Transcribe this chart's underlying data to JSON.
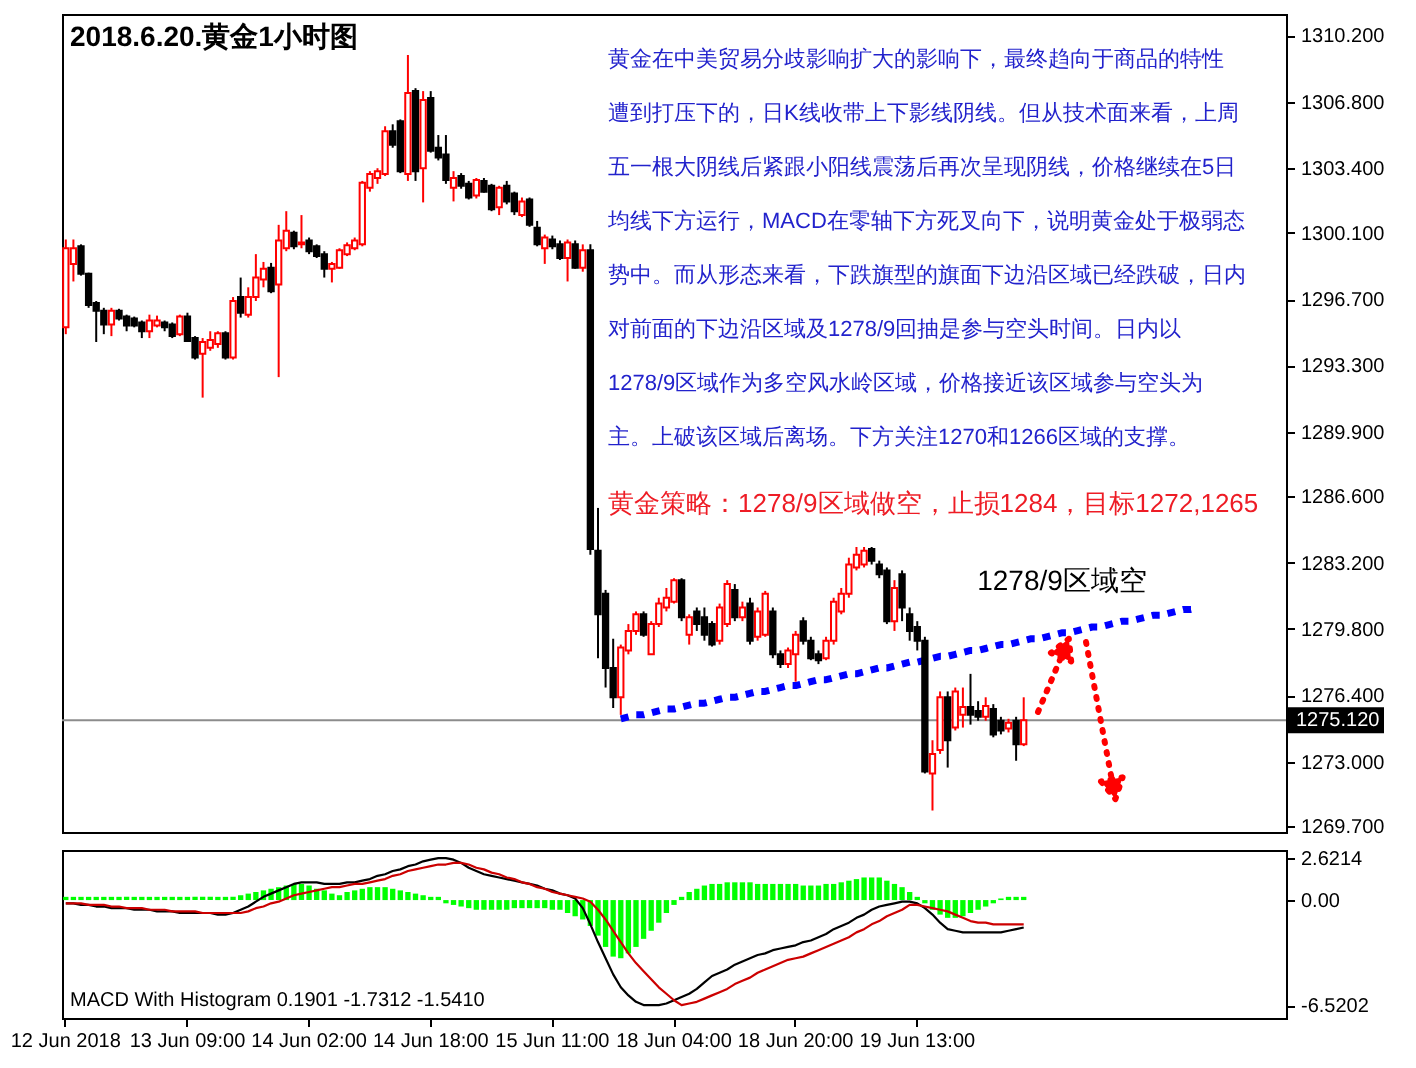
{
  "chart_data": [
    {
      "type": "candlestick",
      "title": "2018.6.20.黄金1小时图",
      "categories": [
        null,
        null,
        null,
        null,
        null,
        null,
        null,
        null,
        null,
        null,
        null,
        null,
        null,
        null,
        null,
        null,
        null,
        null,
        null,
        null,
        null,
        null,
        null,
        null,
        null,
        null,
        null,
        null,
        null,
        null,
        null,
        null,
        null,
        null,
        null,
        null,
        null,
        null,
        null,
        null,
        null,
        null,
        null,
        null,
        null,
        null,
        null,
        null,
        null,
        null,
        null,
        null,
        null,
        null,
        null,
        null,
        null,
        null,
        null,
        null,
        null,
        null,
        null,
        null,
        null,
        null,
        null,
        null,
        null,
        null,
        null,
        null,
        null,
        null,
        null,
        null,
        null,
        null,
        null,
        null,
        null,
        null,
        null,
        null,
        null,
        null,
        null,
        null,
        null,
        null,
        null,
        null,
        null,
        null,
        null,
        null,
        null,
        null,
        null,
        null,
        null,
        null,
        null,
        null,
        null,
        null,
        null,
        null,
        null,
        null,
        null,
        null,
        null,
        null,
        null,
        null,
        null,
        null,
        null,
        null,
        null,
        null,
        null,
        null,
        null,
        null,
        null,
        null,
        null,
        null,
        null,
        null,
        null,
        null,
        null,
        null,
        null,
        null,
        null,
        null,
        null,
        null,
        null,
        null,
        null,
        null,
        null,
        null,
        null,
        null,
        null,
        null,
        null,
        null,
        null,
        null,
        null,
        null,
        null,
        null,
        null
      ],
      "ohlc": [
        [
          1295.25,
          1299.75,
          1294.9,
          1299.3
        ],
        [
          1298.5,
          1299.75,
          1297.6,
          1299.3
        ],
        [
          1299.4,
          1299.5,
          1297.9,
          1298.0
        ],
        [
          1298.0,
          1298.05,
          1296.25,
          1296.4
        ],
        [
          1296.5,
          1296.6,
          1294.5,
          1296.1
        ],
        [
          1296.1,
          1296.25,
          1294.9,
          1295.4
        ],
        [
          1295.4,
          1296.25,
          1294.8,
          1296.1
        ],
        [
          1296.1,
          1296.2,
          1295.6,
          1295.7
        ],
        [
          1295.8,
          1295.9,
          1295.05,
          1295.35
        ],
        [
          1295.7,
          1295.8,
          1295.25,
          1295.35
        ],
        [
          1295.5,
          1295.6,
          1294.7,
          1295.05
        ],
        [
          1295.05,
          1295.9,
          1294.7,
          1295.6
        ],
        [
          1295.35,
          1295.85,
          1295.25,
          1295.6
        ],
        [
          1295.5,
          1295.6,
          1295.05,
          1295.25
        ],
        [
          1295.4,
          1295.5,
          1294.7,
          1294.8
        ],
        [
          1294.9,
          1295.9,
          1294.8,
          1295.8
        ],
        [
          1295.8,
          1296.0,
          1294.5,
          1294.55
        ],
        [
          1294.7,
          1294.8,
          1293.6,
          1293.7
        ],
        [
          1293.9,
          1294.7,
          1291.65,
          1294.5
        ],
        [
          1294.2,
          1295.05,
          1294.05,
          1294.6
        ],
        [
          1294.4,
          1295.05,
          1294.2,
          1294.95
        ],
        [
          1294.95,
          1295.05,
          1293.6,
          1293.7
        ],
        [
          1293.7,
          1296.8,
          1293.6,
          1296.6
        ],
        [
          1296.8,
          1297.8,
          1295.75,
          1296.0
        ],
        [
          1295.9,
          1297.3,
          1295.75,
          1296.8
        ],
        [
          1296.8,
          1299.0,
          1296.6,
          1297.8
        ],
        [
          1297.7,
          1298.6,
          1297.3,
          1298.25
        ],
        [
          1298.3,
          1298.55,
          1297.0,
          1297.1
        ],
        [
          1297.45,
          1300.5,
          1292.7,
          1299.7
        ],
        [
          1299.3,
          1301.2,
          1299.15,
          1300.2
        ],
        [
          1300.1,
          1300.2,
          1299.25,
          1299.4
        ],
        [
          1299.5,
          1301.0,
          1299.3,
          1299.6
        ],
        [
          1299.7,
          1299.85,
          1299.0,
          1299.15
        ],
        [
          1299.4,
          1299.5,
          1298.8,
          1298.9
        ],
        [
          1299.0,
          1299.15,
          1297.8,
          1298.25
        ],
        [
          1298.25,
          1298.6,
          1297.55,
          1298.5
        ],
        [
          1298.3,
          1299.3,
          1298.25,
          1299.2
        ],
        [
          1299.0,
          1299.6,
          1298.9,
          1299.45
        ],
        [
          1299.3,
          1299.85,
          1299.2,
          1299.7
        ],
        [
          1299.5,
          1302.75,
          1299.4,
          1302.65
        ],
        [
          1302.4,
          1303.25,
          1302.2,
          1303.1
        ],
        [
          1302.9,
          1303.4,
          1302.6,
          1303.25
        ],
        [
          1303.1,
          1305.55,
          1303.0,
          1305.3
        ],
        [
          1305.3,
          1305.65,
          1304.45,
          1304.6
        ],
        [
          1305.8,
          1305.9,
          1303.15,
          1303.25
        ],
        [
          1303.1,
          1309.2,
          1302.75,
          1307.25
        ],
        [
          1307.35,
          1307.5,
          1302.75,
          1303.25
        ],
        [
          1303.4,
          1307.35,
          1301.65,
          1306.9
        ],
        [
          1307.0,
          1307.35,
          1304.2,
          1304.3
        ],
        [
          1304.45,
          1305.1,
          1303.8,
          1303.95
        ],
        [
          1304.1,
          1305.1,
          1302.6,
          1302.8
        ],
        [
          1302.4,
          1303.25,
          1301.7,
          1302.9
        ],
        [
          1303.0,
          1303.15,
          1302.35,
          1302.5
        ],
        [
          1302.6,
          1302.75,
          1301.8,
          1301.9
        ],
        [
          1302.0,
          1302.9,
          1301.85,
          1302.8
        ],
        [
          1302.75,
          1302.9,
          1302.15,
          1302.2
        ],
        [
          1302.5,
          1302.6,
          1301.2,
          1301.3
        ],
        [
          1301.4,
          1302.5,
          1301.0,
          1302.4
        ],
        [
          1302.5,
          1302.75,
          1301.55,
          1301.7
        ],
        [
          1302.1,
          1302.2,
          1301.0,
          1301.2
        ],
        [
          1301.0,
          1301.9,
          1300.9,
          1301.7
        ],
        [
          1301.8,
          1301.9,
          1300.4,
          1300.5
        ],
        [
          1300.35,
          1300.7,
          1299.4,
          1299.5
        ],
        [
          1299.3,
          1300.0,
          1298.5,
          1299.85
        ],
        [
          1299.75,
          1299.95,
          1299.25,
          1299.4
        ],
        [
          1299.5,
          1299.7,
          1298.7,
          1298.8
        ],
        [
          1298.8,
          1299.75,
          1297.6,
          1299.6
        ],
        [
          1299.5,
          1299.7,
          1298.25,
          1298.3
        ],
        [
          1298.3,
          1299.5,
          1298.1,
          1299.2
        ],
        [
          1299.2,
          1299.5,
          1283.6,
          1283.9
        ],
        [
          1283.8,
          1286.0,
          1278.3,
          1280.55
        ],
        [
          1281.6,
          1281.8,
          1276.8,
          1277.8
        ],
        [
          1277.8,
          1279.3,
          1275.75,
          1276.3
        ],
        [
          1276.3,
          1279.0,
          1275.4,
          1278.85
        ],
        [
          1278.7,
          1280.05,
          1278.5,
          1279.7
        ],
        [
          1279.7,
          1280.7,
          1279.5,
          1280.55
        ],
        [
          1280.55,
          1280.7,
          1279.4,
          1279.5
        ],
        [
          1278.5,
          1280.2,
          1278.5,
          1280.05
        ],
        [
          1280.05,
          1281.4,
          1279.9,
          1281.1
        ],
        [
          1280.9,
          1281.9,
          1280.7,
          1281.4
        ],
        [
          1281.2,
          1282.4,
          1281.1,
          1282.3
        ],
        [
          1282.3,
          1282.4,
          1280.2,
          1280.4
        ],
        [
          1279.5,
          1280.55,
          1279.0,
          1280.4
        ],
        [
          1280.7,
          1280.9,
          1279.7,
          1280.05
        ],
        [
          1280.4,
          1280.9,
          1279.2,
          1279.5
        ],
        [
          1280.05,
          1280.2,
          1278.9,
          1279.0
        ],
        [
          1279.2,
          1281.1,
          1279.0,
          1280.9
        ],
        [
          1280.05,
          1282.3,
          1279.9,
          1282.1
        ],
        [
          1281.8,
          1282.1,
          1280.2,
          1280.4
        ],
        [
          1280.4,
          1281.2,
          1280.2,
          1280.9
        ],
        [
          1281.1,
          1281.4,
          1279.0,
          1279.2
        ],
        [
          1279.4,
          1280.9,
          1279.2,
          1280.7
        ],
        [
          1279.5,
          1281.75,
          1279.4,
          1281.6
        ],
        [
          1280.7,
          1280.9,
          1278.3,
          1278.5
        ],
        [
          1278.5,
          1278.7,
          1277.8,
          1278.0
        ],
        [
          1278.0,
          1278.85,
          1277.8,
          1278.7
        ],
        [
          1278.5,
          1279.7,
          1277.1,
          1279.5
        ],
        [
          1280.2,
          1280.4,
          1279.0,
          1279.2
        ],
        [
          1279.2,
          1279.4,
          1278.2,
          1278.3
        ],
        [
          1278.5,
          1278.7,
          1278.0,
          1278.2
        ],
        [
          1278.3,
          1279.4,
          1278.2,
          1279.2
        ],
        [
          1279.2,
          1281.4,
          1279.0,
          1281.2
        ],
        [
          1280.7,
          1281.9,
          1280.55,
          1281.6
        ],
        [
          1281.6,
          1283.45,
          1281.4,
          1283.1
        ],
        [
          1282.95,
          1284.0,
          1282.8,
          1283.6
        ],
        [
          1283.1,
          1284.0,
          1282.95,
          1283.8
        ],
        [
          1283.9,
          1284.0,
          1283.1,
          1283.3
        ],
        [
          1283.1,
          1283.3,
          1282.4,
          1282.6
        ],
        [
          1282.8,
          1282.95,
          1280.05,
          1280.2
        ],
        [
          1280.2,
          1282.3,
          1279.7,
          1281.9
        ],
        [
          1282.6,
          1282.8,
          1280.2,
          1280.9
        ],
        [
          1280.55,
          1280.9,
          1279.2,
          1279.7
        ],
        [
          1279.9,
          1280.2,
          1278.7,
          1279.2
        ],
        [
          1279.2,
          1279.4,
          1272.4,
          1272.5
        ],
        [
          1272.4,
          1274.1,
          1270.5,
          1273.4
        ],
        [
          1273.6,
          1276.6,
          1273.4,
          1276.3
        ],
        [
          1276.3,
          1276.6,
          1272.7,
          1274.1
        ],
        [
          1274.75,
          1276.8,
          1274.6,
          1276.6
        ],
        [
          1275.4,
          1276.8,
          1274.75,
          1275.8
        ],
        [
          1275.8,
          1277.5,
          1274.9,
          1275.4
        ],
        [
          1275.6,
          1276.1,
          1275.1,
          1275.3
        ],
        [
          1275.3,
          1276.3,
          1275.1,
          1275.85
        ],
        [
          1275.7,
          1275.95,
          1274.25,
          1274.4
        ],
        [
          1275.1,
          1275.3,
          1274.4,
          1274.6
        ],
        [
          1274.7,
          1275.2,
          1274.5,
          1275.0
        ],
        [
          1275.1,
          1275.3,
          1273.05,
          1273.9
        ],
        [
          1273.9,
          1276.3,
          1273.8,
          1275.12
        ],
        null,
        null,
        null,
        null,
        null,
        null,
        null,
        null,
        null,
        null,
        null,
        null,
        null,
        null,
        null,
        null,
        null,
        null,
        null,
        null,
        null,
        null,
        null,
        null,
        null,
        null,
        null,
        null,
        null,
        null,
        null,
        null,
        null,
        null
      ],
      "colors": [
        "#ff0000",
        "#ff0000",
        "#000000",
        "#000000",
        "#000000",
        "#000000",
        "#ff0000",
        "#000000",
        "#000000",
        "#000000",
        "#000000",
        "#ff0000",
        "#ff0000",
        "#000000",
        "#000000",
        "#ff0000",
        "#000000",
        "#000000",
        "#ff0000",
        "#ff0000",
        "#ff0000",
        "#000000",
        "#ff0000",
        "#000000",
        "#ff0000",
        "#ff0000",
        "#ff0000",
        "#000000",
        "#ff0000",
        "#ff0000",
        "#000000",
        "#ff0000",
        "#000000",
        "#000000",
        "#000000",
        "#ff0000",
        "#ff0000",
        "#ff0000",
        "#ff0000",
        "#ff0000",
        "#ff0000",
        "#ff0000",
        "#ff0000",
        "#000000",
        "#000000",
        "#ff0000",
        "#000000",
        "#ff0000",
        "#000000",
        "#000000",
        "#000000",
        "#ff0000",
        "#000000",
        "#000000",
        "#ff0000",
        "#000000",
        "#000000",
        "#ff0000",
        "#000000",
        "#000000",
        "#ff0000",
        "#000000",
        "#000000",
        "#ff0000",
        "#000000",
        "#000000",
        "#ff0000",
        "#000000",
        "#ff0000",
        "#000000",
        "#000000",
        "#000000",
        "#000000",
        "#ff0000",
        "#ff0000",
        "#ff0000",
        "#000000",
        "#ff0000",
        "#ff0000",
        "#ff0000",
        "#ff0000",
        "#000000",
        "#ff0000",
        "#000000",
        "#000000",
        "#000000",
        "#ff0000",
        "#ff0000",
        "#000000",
        "#ff0000",
        "#000000",
        "#ff0000",
        "#ff0000",
        "#000000",
        "#000000",
        "#ff0000",
        "#ff0000",
        "#000000",
        "#000000",
        "#000000",
        "#ff0000",
        "#ff0000",
        "#ff0000",
        "#ff0000",
        "#ff0000",
        "#ff0000",
        "#000000",
        "#000000",
        "#000000",
        "#ff0000",
        "#000000",
        "#000000",
        "#000000",
        "#000000",
        "#ff0000",
        "#ff0000",
        "#000000",
        "#ff0000",
        "#ff0000",
        "#000000",
        "#000000",
        "#ff0000",
        "#000000",
        "#000000",
        "#ff0000",
        "#000000",
        "#ff0000",
        null,
        null,
        null,
        null,
        null,
        null,
        null,
        null,
        null,
        null,
        null,
        null,
        null,
        null,
        null,
        null,
        null,
        null,
        null,
        null,
        null,
        null,
        null,
        null,
        null,
        null,
        null,
        null,
        null,
        null,
        null,
        null,
        null,
        null
      ],
      "series": [
        {
          "type": "line",
          "color": "#0000ff",
          "line_style": "dotted",
          "values": [
            null,
            null,
            null,
            null,
            null,
            null,
            null,
            null,
            null,
            null,
            null,
            null,
            null,
            null,
            null,
            null,
            null,
            null,
            null,
            null,
            null,
            null,
            null,
            null,
            null,
            null,
            null,
            null,
            null,
            null,
            null,
            null,
            null,
            null,
            null,
            null,
            null,
            null,
            null,
            null,
            null,
            null,
            null,
            null,
            null,
            null,
            null,
            null,
            null,
            null,
            null,
            null,
            null,
            null,
            null,
            null,
            null,
            null,
            null,
            null,
            null,
            null,
            null,
            null,
            null,
            null,
            null,
            null,
            null,
            null,
            null,
            null,
            null,
            1275.2,
            1275.3,
            1275.4,
            1275.4,
            1275.5,
            1275.6,
            1275.7,
            1275.7,
            1275.8,
            1275.9,
            1276.0,
            1276.0,
            1276.1,
            1276.2,
            1276.3,
            1276.3,
            1276.4,
            1276.5,
            1276.6,
            1276.6,
            1276.7,
            1276.8,
            1276.9,
            1276.9,
            1277.0,
            1277.1,
            1277.2,
            1277.2,
            1277.3,
            1277.4,
            1277.5,
            1277.5,
            1277.6,
            1277.7,
            1277.8,
            1277.8,
            1277.9,
            1278.0,
            1278.1,
            1278.1,
            1278.2,
            1278.3,
            1278.4,
            1278.4,
            1278.5,
            1278.6,
            1278.7,
            1278.7,
            1278.8,
            1278.9,
            1279.0,
            1279.0,
            1279.1,
            1279.2,
            1279.3,
            1279.3,
            1279.4,
            1279.5,
            1279.6,
            1279.6,
            1279.7,
            1279.8,
            1279.9,
            1279.9,
            1280.0,
            1280.1,
            1280.2,
            1280.2,
            1280.3,
            1280.4,
            1280.5,
            1280.5,
            1280.6,
            1280.7,
            1280.8,
            1280.8,
            1280.9,
            null,
            null,
            null,
            null,
            null,
            null,
            null,
            null,
            null,
            null,
            null
          ]
        }
      ],
      "ylim": [
        1269.4,
        1311.3
      ],
      "yticks": [
        {
          "value": 1310.2,
          "label": "1310.200"
        },
        {
          "value": 1306.8,
          "label": "1306.800"
        },
        {
          "value": 1303.4,
          "label": "1303.400"
        },
        {
          "value": 1300.1,
          "label": "1300.100"
        },
        {
          "value": 1296.7,
          "label": "1296.700"
        },
        {
          "value": 1293.3,
          "label": "1293.300"
        },
        {
          "value": 1289.9,
          "label": "1289.900"
        },
        {
          "value": 1286.6,
          "label": "1286.600"
        },
        {
          "value": 1283.2,
          "label": "1283.200"
        },
        {
          "value": 1279.8,
          "label": "1279.800"
        },
        {
          "value": 1276.4,
          "label": "1276.400"
        },
        {
          "value": 1273.0,
          "label": "1273.000"
        },
        {
          "value": 1269.7,
          "label": "1269.700"
        }
      ],
      "ref_lines": [
        {
          "axis": "y",
          "value": 1275.12,
          "label": "1275.120",
          "color": "#8c8c8c"
        }
      ],
      "annotations": [
        "黄金在中美贸易分歧影响扩大的影响下，最终趋向于商品的特性",
        "遭到打压下的，日K线收带上下影线阴线。但从技术面来看，上周",
        "五一根大阴线后紧跟小阳线震荡后再次呈现阴线，价格继续在5日",
        "均线下方运行，MACD在零轴下方死叉向下，说明黄金处于极弱态",
        "势中。而从形态来看，下跌旗型的旗面下边沿区域已经跌破，日内",
        "对前面的下边沿区域及1278/9回抽是参与空头时间。日内以",
        "1278/9区域作为多空风水岭区域，价格接近该区域参与空头为",
        "主。上破该区域后离场。下方关注1270和1266区域的支撑。",
        "黄金策略：1278/9区域做空，止损1284，目标1272,1265",
        "1278/9区域空"
      ]
    },
    {
      "type": "bar",
      "title": "MACD With Histogram 0.1901 -1.7312 -1.5410",
      "categories": [
        "12 Jun 2018",
        null,
        null,
        null,
        null,
        null,
        null,
        null,
        null,
        null,
        null,
        null,
        null,
        null,
        null,
        null,
        "13 Jun 09:00",
        null,
        null,
        null,
        null,
        null,
        null,
        null,
        null,
        null,
        null,
        null,
        null,
        null,
        null,
        null,
        "14 Jun 02:00",
        null,
        null,
        null,
        null,
        null,
        null,
        null,
        null,
        null,
        null,
        null,
        null,
        null,
        null,
        null,
        "14 Jun 18:00",
        null,
        null,
        null,
        null,
        null,
        null,
        null,
        null,
        null,
        null,
        null,
        null,
        null,
        null,
        null,
        "15 Jun 11:00",
        null,
        null,
        null,
        null,
        null,
        null,
        null,
        null,
        null,
        null,
        null,
        null,
        null,
        null,
        null,
        "18 Jun 04:00",
        null,
        null,
        null,
        null,
        null,
        null,
        null,
        null,
        null,
        null,
        null,
        null,
        null,
        null,
        null,
        "18 Jun 20:00",
        null,
        null,
        null,
        null,
        null,
        null,
        null,
        null,
        null,
        null,
        null,
        null,
        null,
        null,
        null,
        "19 Jun 13:00",
        null,
        null,
        null,
        null,
        null,
        null,
        null,
        null,
        null,
        null,
        null,
        null,
        null,
        null,
        null,
        null,
        null,
        null,
        null,
        null,
        null,
        null,
        null,
        null,
        null,
        null,
        null,
        null,
        null,
        null,
        null,
        null,
        null,
        null,
        null,
        null,
        null,
        null,
        null,
        null,
        null,
        null,
        null,
        null,
        null,
        null,
        null,
        null
      ],
      "series": [
        {
          "type": "bar",
          "color": "#00ff00",
          "values": [
            0.2,
            0.2,
            0.2,
            0.2,
            0.2,
            0.2,
            0.2,
            0.2,
            0.2,
            0.2,
            0.2,
            0.2,
            0.2,
            0.2,
            0.2,
            0.2,
            0.2,
            0.2,
            0.2,
            0.2,
            0.2,
            0.2,
            0.2,
            0.3,
            0.4,
            0.5,
            0.6,
            0.7,
            0.8,
            0.9,
            1.0,
            1.0,
            0.9,
            0.7,
            0.6,
            0.4,
            0.3,
            0.5,
            0.6,
            0.7,
            0.8,
            0.8,
            0.8,
            0.7,
            0.6,
            0.5,
            0.4,
            0.3,
            0.2,
            0.2,
            -0.2,
            -0.3,
            -0.4,
            -0.5,
            -0.6,
            -0.6,
            -0.6,
            -0.6,
            -0.6,
            -0.5,
            -0.5,
            -0.5,
            -0.5,
            -0.5,
            -0.6,
            -0.6,
            -0.8,
            -1.0,
            -1.2,
            -1.6,
            -2.2,
            -2.9,
            -3.5,
            -3.6,
            -3.3,
            -2.9,
            -2.4,
            -1.9,
            -1.4,
            -0.8,
            -0.3,
            0.2,
            0.5,
            0.7,
            0.9,
            1.0,
            1.0,
            1.1,
            1.1,
            1.1,
            1.1,
            1.0,
            1.0,
            1.0,
            1.0,
            1.0,
            1.0,
            0.9,
            0.9,
            0.9,
            1.0,
            1.0,
            1.1,
            1.2,
            1.3,
            1.4,
            1.4,
            1.4,
            1.2,
            1.0,
            0.8,
            0.5,
            0.2,
            -0.2,
            -0.6,
            -0.9,
            -1.1,
            -1.1,
            -1.0,
            -0.8,
            -0.6,
            -0.4,
            -0.2,
            0.1,
            0.2,
            0.2,
            0.2,
            null,
            null,
            null,
            null,
            null,
            null,
            null,
            null,
            null,
            null,
            null,
            null,
            null,
            null,
            null,
            null,
            null,
            null,
            null,
            null,
            null,
            null,
            null,
            null,
            null,
            null,
            null,
            null,
            null,
            null,
            null,
            null,
            null,
            null
          ]
        },
        {
          "type": "line",
          "color": "#000000",
          "values": [
            -0.2,
            -0.2,
            -0.3,
            -0.3,
            -0.4,
            -0.4,
            -0.5,
            -0.5,
            -0.5,
            -0.6,
            -0.6,
            -0.6,
            -0.7,
            -0.7,
            -0.7,
            -0.8,
            -0.8,
            -0.8,
            -0.8,
            -0.8,
            -0.9,
            -0.9,
            -0.8,
            -0.6,
            -0.4,
            -0.1,
            0.2,
            0.4,
            0.6,
            0.8,
            1.0,
            1.1,
            1.1,
            1.1,
            1.0,
            1.0,
            1.0,
            1.1,
            1.1,
            1.2,
            1.3,
            1.5,
            1.6,
            1.8,
            1.9,
            2.1,
            2.2,
            2.4,
            2.5,
            2.6,
            2.6,
            2.5,
            2.3,
            2.0,
            1.8,
            1.6,
            1.5,
            1.4,
            1.3,
            1.2,
            1.1,
            1.0,
            0.9,
            0.7,
            0.6,
            0.4,
            0.3,
            0.1,
            -0.5,
            -1.5,
            -2.6,
            -3.6,
            -4.6,
            -5.4,
            -5.9,
            -6.3,
            -6.5,
            -6.5,
            -6.5,
            -6.4,
            -6.2,
            -6.0,
            -5.8,
            -5.5,
            -5.1,
            -4.7,
            -4.5,
            -4.3,
            -4.0,
            -3.8,
            -3.6,
            -3.4,
            -3.3,
            -3.1,
            -3.0,
            -2.9,
            -2.8,
            -2.6,
            -2.5,
            -2.3,
            -2.1,
            -1.8,
            -1.6,
            -1.4,
            -1.1,
            -0.9,
            -0.6,
            -0.4,
            -0.3,
            -0.2,
            -0.1,
            -0.1,
            -0.2,
            -0.5,
            -0.9,
            -1.4,
            -1.8,
            -1.9,
            -2.0,
            -2.0,
            -2.0,
            -2.0,
            -2.0,
            -2.0,
            -1.9,
            -1.8,
            -1.7,
            null,
            null,
            null,
            null,
            null,
            null,
            null,
            null,
            null,
            null,
            null,
            null,
            null,
            null,
            null,
            null,
            null,
            null,
            null,
            null,
            null,
            null,
            null,
            null,
            null,
            null,
            null,
            null,
            null,
            null,
            null,
            null,
            null,
            null
          ]
        },
        {
          "type": "line",
          "color": "#cc0000",
          "values": [
            -0.2,
            -0.2,
            -0.2,
            -0.3,
            -0.3,
            -0.3,
            -0.4,
            -0.4,
            -0.5,
            -0.5,
            -0.5,
            -0.6,
            -0.6,
            -0.6,
            -0.7,
            -0.7,
            -0.7,
            -0.7,
            -0.8,
            -0.8,
            -0.8,
            -0.8,
            -0.8,
            -0.8,
            -0.7,
            -0.5,
            -0.4,
            -0.2,
            -0.1,
            0.1,
            0.3,
            0.4,
            0.5,
            0.6,
            0.7,
            0.8,
            0.8,
            0.9,
            1.0,
            1.0,
            1.1,
            1.2,
            1.3,
            1.5,
            1.6,
            1.8,
            1.9,
            2.0,
            2.1,
            2.2,
            2.2,
            2.3,
            2.3,
            2.2,
            2.0,
            1.9,
            1.7,
            1.6,
            1.4,
            1.3,
            1.1,
            1.0,
            0.8,
            0.7,
            0.5,
            0.4,
            0.3,
            0.2,
            0.1,
            -0.1,
            -0.6,
            -1.2,
            -1.9,
            -2.6,
            -3.3,
            -3.9,
            -4.4,
            -4.9,
            -5.4,
            -5.8,
            -6.2,
            -6.5,
            -6.4,
            -6.3,
            -6.1,
            -5.9,
            -5.7,
            -5.5,
            -5.2,
            -5.0,
            -4.8,
            -4.5,
            -4.3,
            -4.1,
            -3.9,
            -3.7,
            -3.6,
            -3.5,
            -3.3,
            -3.1,
            -2.9,
            -2.7,
            -2.5,
            -2.3,
            -2.0,
            -1.8,
            -1.5,
            -1.3,
            -1.0,
            -0.8,
            -0.6,
            -0.3,
            -0.3,
            -0.4,
            -0.5,
            -0.6,
            -0.7,
            -0.9,
            -1.1,
            -1.3,
            -1.4,
            -1.4,
            -1.5,
            -1.5,
            -1.5,
            -1.5,
            -1.5,
            null,
            null,
            null,
            null,
            null,
            null,
            null,
            null,
            null,
            null,
            null,
            null,
            null,
            null,
            null,
            null,
            null,
            null,
            null,
            null,
            null,
            null,
            null,
            null,
            null,
            null,
            null,
            null,
            null,
            null,
            null,
            null,
            null,
            null
          ]
        }
      ],
      "ylim": [
        -7.3,
        3.1
      ],
      "yticks": [
        2.6214,
        {
          "value": 0,
          "label": "0.00"
        },
        -6.5202
      ]
    }
  ]
}
